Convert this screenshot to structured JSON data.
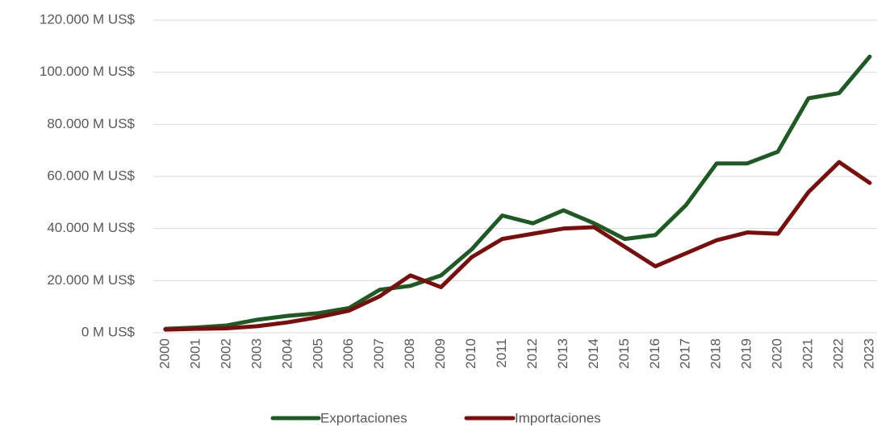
{
  "chart_data": {
    "type": "line",
    "categories": [
      "2000",
      "2001",
      "2002",
      "2003",
      "2004",
      "2005",
      "2006",
      "2007",
      "2008",
      "2009",
      "2010",
      "2011",
      "2012",
      "2013",
      "2014",
      "2015",
      "2016",
      "2017",
      "2018",
      "2019",
      "2020",
      "2021",
      "2022",
      "2023"
    ],
    "series": [
      {
        "name": "Exportaciones",
        "color": "#1e5b24",
        "values": [
          1500,
          2000,
          2800,
          5000,
          6500,
          7500,
          9500,
          16500,
          18000,
          22000,
          32000,
          45000,
          42000,
          47000,
          42000,
          36000,
          37500,
          49000,
          65000,
          65000,
          69500,
          90000,
          92000,
          106000
        ]
      },
      {
        "name": "Importaciones",
        "color": "#7b0d0d",
        "values": [
          1200,
          1500,
          1700,
          2500,
          4000,
          6000,
          8500,
          14000,
          22000,
          17500,
          29000,
          36000,
          38000,
          40000,
          40500,
          33000,
          25500,
          30500,
          35500,
          38500,
          38000,
          54000,
          65500,
          57500
        ]
      }
    ],
    "ylim": [
      0,
      120000
    ],
    "yticks": [
      {
        "value": 0,
        "label": "0 M US$"
      },
      {
        "value": 20000,
        "label": "20.000 M US$"
      },
      {
        "value": 40000,
        "label": "40.000 M US$"
      },
      {
        "value": 60000,
        "label": "60.000 M US$"
      },
      {
        "value": 80000,
        "label": "80.000 M US$"
      },
      {
        "value": 100000,
        "label": "100.000 M US$"
      },
      {
        "value": 120000,
        "label": "120.000 M US$"
      }
    ],
    "grid": true,
    "legend": "bottom"
  }
}
